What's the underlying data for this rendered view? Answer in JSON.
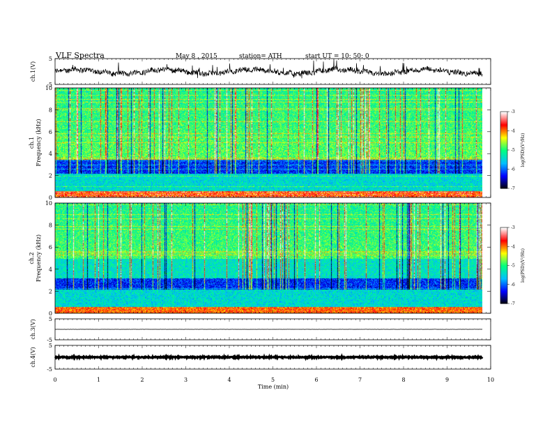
{
  "header": {
    "title": "VLF  Spectra",
    "date": "May 8  , 2015",
    "station": "station= ATH",
    "start": "start  UT  =    10: 50: 0"
  },
  "chart_data": {
    "type": "spectrogram",
    "x_label": "Time  (min)",
    "x_ticks": [
      "0",
      "1",
      "2",
      "3",
      "4",
      "5",
      "6",
      "7",
      "8",
      "9",
      "10"
    ],
    "x_range": [
      0,
      10
    ],
    "data_end_min": 9.8,
    "panels": [
      {
        "id": "ch1-waveform",
        "type": "line",
        "ylabel": "ch.1(V)",
        "ylim": [
          -5,
          5
        ],
        "yticks": [
          "5",
          "-5"
        ],
        "level": 0,
        "noise": 0.6
      },
      {
        "id": "ch1-spectrum",
        "type": "heatmap",
        "ylabel_top": "ch.1",
        "ylabel": "Frequency  (kHz)",
        "ylim": [
          0,
          10
        ],
        "yticks": [
          "0",
          "2",
          "4",
          "6",
          "8",
          "10"
        ],
        "colorbar_label": "log(PSD)(V²/Hz)",
        "colorbar_ticks": [
          "-3",
          "-4",
          "-5",
          "-6",
          "-7"
        ],
        "colorbar_range": [
          -7,
          -3
        ]
      },
      {
        "id": "ch2-spectrum",
        "type": "heatmap",
        "ylabel_top": "ch.2",
        "ylabel": "Frequency  (kHz)",
        "ylim": [
          0,
          10
        ],
        "yticks": [
          "0",
          "2",
          "4",
          "6",
          "8",
          "10"
        ],
        "colorbar_label": "log(PSD)(V²/Hz)",
        "colorbar_ticks": [
          "-3",
          "-4",
          "-5",
          "-6",
          "-7"
        ],
        "colorbar_range": [
          -7,
          -3
        ]
      },
      {
        "id": "ch3-waveform",
        "type": "line",
        "ylabel": "ch.3(V)",
        "ylim": [
          -5,
          5
        ],
        "yticks": [
          "5",
          "-5"
        ],
        "level": 0,
        "noise": 0.05
      },
      {
        "id": "ch4-waveform",
        "type": "line",
        "ylabel": "ch.4(V)",
        "ylim": [
          -5,
          5
        ],
        "yticks": [
          "5",
          "-5"
        ],
        "level": 0,
        "noise": 0.25
      }
    ]
  },
  "colors": {
    "colormap": [
      "#000000",
      "#0000ff",
      "#00bfff",
      "#00ff80",
      "#ffff00",
      "#ff0000",
      "#ffffff"
    ]
  }
}
